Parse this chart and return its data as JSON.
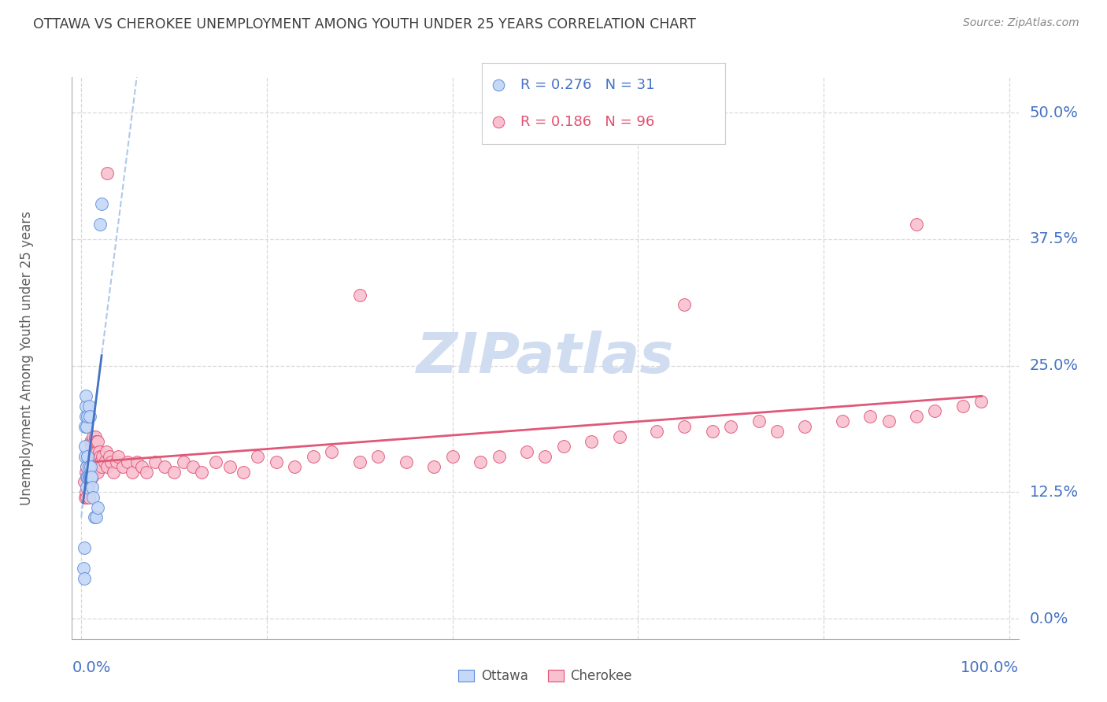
{
  "title": "OTTAWA VS CHEROKEE UNEMPLOYMENT AMONG YOUTH UNDER 25 YEARS CORRELATION CHART",
  "source": "Source: ZipAtlas.com",
  "ylabel": "Unemployment Among Youth under 25 years",
  "ytick_labels": [
    "0.0%",
    "12.5%",
    "25.0%",
    "37.5%",
    "50.0%"
  ],
  "ytick_values": [
    0.0,
    0.125,
    0.25,
    0.375,
    0.5
  ],
  "xlim": [
    -0.01,
    1.01
  ],
  "ylim": [
    -0.02,
    0.535
  ],
  "legend_ottawa_R": "0.276",
  "legend_ottawa_N": "31",
  "legend_cherokee_R": "0.186",
  "legend_cherokee_N": "96",
  "ottawa_fill_color": "#c5d8f8",
  "ottawa_edge_color": "#5b8dd9",
  "cherokee_fill_color": "#f8c0d0",
  "cherokee_edge_color": "#e05070",
  "ottawa_line_color": "#4472c4",
  "cherokee_line_color": "#e05878",
  "dash_color": "#b0c8e8",
  "watermark_color": "#d0ddf0",
  "watermark": "ZIPatlas",
  "background_color": "#ffffff",
  "grid_color": "#d8d8d8",
  "tick_label_color": "#4472c4",
  "title_color": "#404040",
  "source_color": "#888888",
  "ylabel_color": "#606060",
  "ottawa_x": [
    0.002,
    0.003,
    0.003,
    0.004,
    0.004,
    0.004,
    0.005,
    0.005,
    0.005,
    0.006,
    0.006,
    0.006,
    0.006,
    0.007,
    0.007,
    0.007,
    0.008,
    0.008,
    0.008,
    0.009,
    0.009,
    0.01,
    0.01,
    0.011,
    0.012,
    0.013,
    0.014,
    0.016,
    0.018,
    0.02,
    0.022
  ],
  "ottawa_y": [
    0.05,
    0.04,
    0.07,
    0.16,
    0.17,
    0.19,
    0.2,
    0.21,
    0.22,
    0.13,
    0.14,
    0.15,
    0.19,
    0.14,
    0.16,
    0.2,
    0.14,
    0.15,
    0.21,
    0.14,
    0.2,
    0.14,
    0.15,
    0.14,
    0.13,
    0.12,
    0.1,
    0.1,
    0.11,
    0.39,
    0.41
  ],
  "cherokee_x": [
    0.003,
    0.004,
    0.005,
    0.005,
    0.006,
    0.006,
    0.007,
    0.007,
    0.008,
    0.008,
    0.008,
    0.009,
    0.009,
    0.01,
    0.01,
    0.01,
    0.011,
    0.011,
    0.012,
    0.012,
    0.012,
    0.013,
    0.013,
    0.013,
    0.014,
    0.014,
    0.015,
    0.015,
    0.016,
    0.016,
    0.017,
    0.018,
    0.018,
    0.019,
    0.02,
    0.021,
    0.022,
    0.023,
    0.025,
    0.027,
    0.028,
    0.03,
    0.032,
    0.035,
    0.038,
    0.04,
    0.045,
    0.05,
    0.055,
    0.06,
    0.065,
    0.07,
    0.08,
    0.09,
    0.1,
    0.11,
    0.12,
    0.13,
    0.145,
    0.16,
    0.175,
    0.19,
    0.21,
    0.23,
    0.25,
    0.27,
    0.3,
    0.32,
    0.35,
    0.38,
    0.4,
    0.43,
    0.45,
    0.48,
    0.5,
    0.52,
    0.55,
    0.58,
    0.62,
    0.65,
    0.68,
    0.7,
    0.73,
    0.75,
    0.78,
    0.82,
    0.85,
    0.87,
    0.9,
    0.92,
    0.95,
    0.97,
    0.028,
    0.3,
    0.65,
    0.9
  ],
  "cherokee_y": [
    0.135,
    0.12,
    0.125,
    0.145,
    0.12,
    0.15,
    0.13,
    0.16,
    0.14,
    0.155,
    0.12,
    0.135,
    0.155,
    0.14,
    0.16,
    0.175,
    0.15,
    0.17,
    0.14,
    0.16,
    0.175,
    0.145,
    0.165,
    0.18,
    0.155,
    0.175,
    0.16,
    0.18,
    0.155,
    0.175,
    0.165,
    0.145,
    0.175,
    0.165,
    0.16,
    0.155,
    0.15,
    0.16,
    0.155,
    0.165,
    0.15,
    0.16,
    0.155,
    0.145,
    0.155,
    0.16,
    0.15,
    0.155,
    0.145,
    0.155,
    0.15,
    0.145,
    0.155,
    0.15,
    0.145,
    0.155,
    0.15,
    0.145,
    0.155,
    0.15,
    0.145,
    0.16,
    0.155,
    0.15,
    0.16,
    0.165,
    0.155,
    0.16,
    0.155,
    0.15,
    0.16,
    0.155,
    0.16,
    0.165,
    0.16,
    0.17,
    0.175,
    0.18,
    0.185,
    0.19,
    0.185,
    0.19,
    0.195,
    0.185,
    0.19,
    0.195,
    0.2,
    0.195,
    0.2,
    0.205,
    0.21,
    0.215,
    0.44,
    0.32,
    0.31,
    0.39
  ]
}
